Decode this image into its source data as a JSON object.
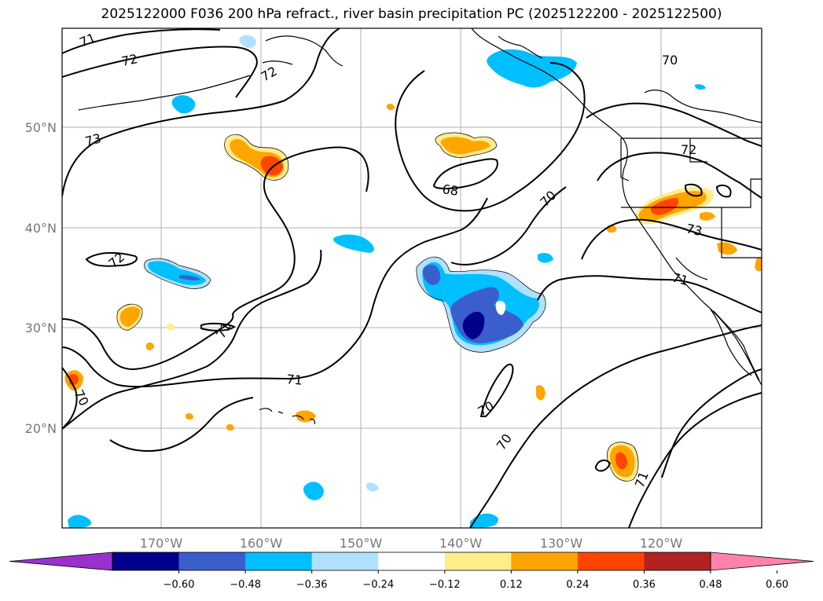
{
  "title": "2025122000 F036 200 hPa refract., river basin precipitation PC (2025122200 - 2025122500)",
  "map": {
    "lat_labels": [
      "50°N",
      "40°N",
      "30°N",
      "20°N"
    ],
    "lon_labels": [
      "170°W",
      "160°W",
      "150°W",
      "140°W",
      "130°W",
      "120°W"
    ],
    "contour_labels": [
      "71",
      "72",
      "72",
      "73",
      "70",
      "72",
      "73",
      "68",
      "70",
      "71",
      "72",
      "71",
      "71",
      "70",
      "70",
      "70",
      "71"
    ]
  },
  "colorbar": {
    "colors": [
      "#9932cc",
      "#00008b",
      "#3a5fcd",
      "#00bfff",
      "#b0e2ff",
      "#ffffff",
      "#ffec8b",
      "#ffa500",
      "#ff4500",
      "#b22222",
      "#ff82ab"
    ],
    "tick_labels": [
      "−0.60",
      "−0.48",
      "−0.36",
      "−0.24",
      "−0.12",
      "0.12",
      "0.24",
      "0.36",
      "0.48",
      "0.60"
    ]
  }
}
